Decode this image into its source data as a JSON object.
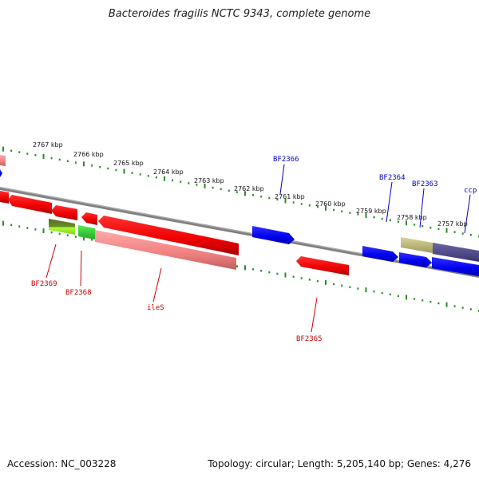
{
  "title": "Bacteroides fragilis NCTC 9343, complete genome",
  "footer": {
    "accession": "Accession: NC_003228",
    "summary": "Topology: circular; Length: 5,205,140 bp; Genes: 4,276"
  },
  "colors": {
    "forward_label": "#0000cc",
    "reverse_label": "#cc0000",
    "tick": "#2a8a2a",
    "backbone": "#808080"
  },
  "scale": {
    "labels": [
      "2767 kbp",
      "2766 kbp",
      "2765 kbp",
      "2764 kbp",
      "2763 kbp",
      "2762 kbp",
      "2761 kbp",
      "2760 kbp",
      "2759 kbp",
      "2758 kbp",
      "2757 kbp"
    ]
  },
  "gene_labels": [
    {
      "id": "BF2366",
      "text": "BF2366",
      "strand": "forward"
    },
    {
      "id": "BF2364",
      "text": "BF2364",
      "strand": "forward"
    },
    {
      "id": "BF2363",
      "text": "BF2363",
      "strand": "forward"
    },
    {
      "id": "ccp",
      "text": "ccp",
      "strand": "forward"
    },
    {
      "id": "BF2369",
      "text": "BF2369",
      "strand": "reverse"
    },
    {
      "id": "BF2368",
      "text": "BF2368",
      "strand": "reverse"
    },
    {
      "id": "ileS",
      "text": "ileS",
      "strand": "reverse"
    },
    {
      "id": "BF2365",
      "text": "BF2365",
      "strand": "reverse"
    }
  ]
}
